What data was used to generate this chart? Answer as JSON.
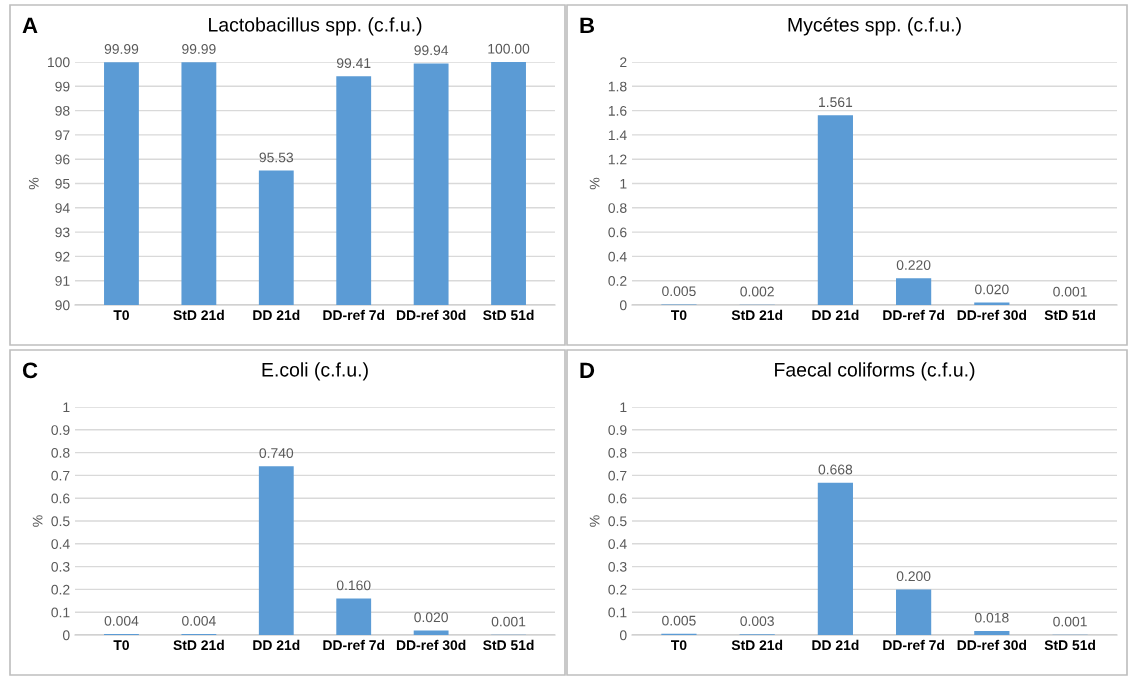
{
  "chart_data": [
    {
      "type": "bar",
      "title": "Lactobacillus spp. (c.f.u.)",
      "ylabel": "%",
      "annotations": [
        "A"
      ],
      "categories": [
        "T0",
        "StD 21d",
        "DD 21d",
        "DD-ref 7d",
        "DD-ref 30d",
        "StD 51d"
      ],
      "values": [
        99.99,
        99.99,
        95.53,
        99.41,
        99.94,
        100.0
      ],
      "value_labels": [
        "99.99",
        "99.99",
        "95.53",
        "99.41",
        "99.94",
        "100.00"
      ],
      "color": "#5b9bd5",
      "ylim": [
        90,
        100
      ],
      "yticks": [
        90,
        91,
        92,
        93,
        94,
        95,
        96,
        97,
        98,
        99,
        100
      ],
      "grid": "y"
    },
    {
      "type": "bar",
      "title": "Mycétes spp. (c.f.u.)",
      "ylabel": "%",
      "annotations": [
        "B"
      ],
      "categories": [
        "T0",
        "StD 21d",
        "DD 21d",
        "DD-ref 7d",
        "DD-ref 30d",
        "StD 51d"
      ],
      "values": [
        0.005,
        0.002,
        1.561,
        0.22,
        0.02,
        0.001
      ],
      "value_labels": [
        "0.005",
        "0.002",
        "1.561",
        "0.220",
        "0.020",
        "0.001"
      ],
      "color": "#5b9bd5",
      "ylim": [
        0,
        2
      ],
      "yticks": [
        0,
        0.2,
        0.4,
        0.6,
        0.8,
        1,
        1.2,
        1.4,
        1.6,
        1.8,
        2
      ],
      "grid": "y"
    },
    {
      "type": "bar",
      "title": "E.coli (c.f.u.)",
      "ylabel": "%",
      "annotations": [
        "C"
      ],
      "categories": [
        "T0",
        "StD 21d",
        "DD 21d",
        "DD-ref 7d",
        "DD-ref 30d",
        "StD 51d"
      ],
      "values": [
        0.004,
        0.004,
        0.74,
        0.16,
        0.02,
        0.001
      ],
      "value_labels": [
        "0.004",
        "0.004",
        "0.740",
        "0.160",
        "0.020",
        "0.001"
      ],
      "color": "#5b9bd5",
      "ylim": [
        0,
        1
      ],
      "yticks": [
        0,
        0.1,
        0.2,
        0.3,
        0.4,
        0.5,
        0.6,
        0.7,
        0.8,
        0.9,
        1
      ],
      "grid": "y"
    },
    {
      "type": "bar",
      "title": "Faecal coliforms (c.f.u.)",
      "ylabel": "%",
      "annotations": [
        "D"
      ],
      "categories": [
        "T0",
        "StD 21d",
        "DD 21d",
        "DD-ref 7d",
        "DD-ref 30d",
        "StD 51d"
      ],
      "values": [
        0.005,
        0.003,
        0.668,
        0.2,
        0.018,
        0.001
      ],
      "value_labels": [
        "0.005",
        "0.003",
        "0.668",
        "0.200",
        "0.018",
        "0.001"
      ],
      "color": "#5b9bd5",
      "ylim": [
        0,
        1
      ],
      "yticks": [
        0,
        0.1,
        0.2,
        0.3,
        0.4,
        0.5,
        0.6,
        0.7,
        0.8,
        0.9,
        1
      ],
      "grid": "y"
    }
  ]
}
